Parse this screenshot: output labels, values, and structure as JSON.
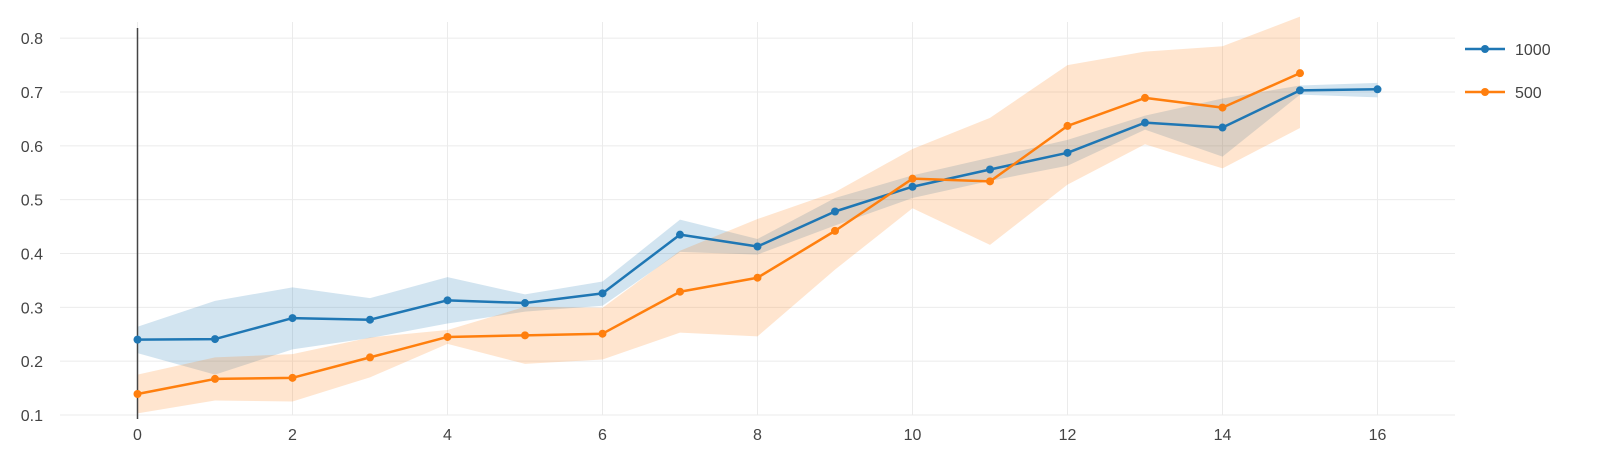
{
  "chart_data": {
    "type": "line",
    "title": "",
    "xlabel": "",
    "ylabel": "",
    "xlim": [
      -1,
      17
    ],
    "ylim": [
      0.1,
      0.83
    ],
    "xticks": [
      0,
      2,
      4,
      6,
      8,
      10,
      12,
      14,
      16
    ],
    "yticks": [
      0.1,
      0.2,
      0.3,
      0.4,
      0.5,
      0.6,
      0.7,
      0.8
    ],
    "ytick_labels": [
      "0.1",
      "0.2",
      "0.3",
      "0.4",
      "0.5",
      "0.6",
      "0.7",
      "0.8"
    ],
    "grid": true,
    "legend_position": "top-right",
    "series": [
      {
        "name": "1000",
        "color": "#1f77b4",
        "band_color": "#1f77b4",
        "x": [
          0,
          1,
          2,
          3,
          4,
          5,
          6,
          7,
          8,
          9,
          10,
          11,
          12,
          13,
          14,
          15,
          16
        ],
        "values": [
          0.24,
          0.241,
          0.28,
          0.277,
          0.313,
          0.308,
          0.326,
          0.435,
          0.413,
          0.478,
          0.524,
          0.556,
          0.587,
          0.643,
          0.634,
          0.703,
          0.705
        ],
        "lower": [
          0.215,
          0.175,
          0.222,
          0.243,
          0.27,
          0.292,
          0.303,
          0.403,
          0.398,
          0.452,
          0.503,
          0.535,
          0.563,
          0.63,
          0.58,
          0.695,
          0.69
        ],
        "upper": [
          0.264,
          0.312,
          0.337,
          0.317,
          0.356,
          0.324,
          0.348,
          0.463,
          0.427,
          0.503,
          0.545,
          0.578,
          0.611,
          0.656,
          0.688,
          0.712,
          0.717
        ]
      },
      {
        "name": "500",
        "color": "#ff7f0e",
        "band_color": "#ff7f0e",
        "x": [
          0,
          1,
          2,
          3,
          4,
          5,
          6,
          7,
          8,
          9,
          10,
          11,
          12,
          13,
          14,
          15
        ],
        "values": [
          0.139,
          0.167,
          0.169,
          0.207,
          0.245,
          0.248,
          0.251,
          0.329,
          0.355,
          0.442,
          0.539,
          0.534,
          0.637,
          0.689,
          0.671,
          0.735
        ],
        "lower": [
          0.103,
          0.127,
          0.125,
          0.17,
          0.232,
          0.195,
          0.203,
          0.253,
          0.246,
          0.37,
          0.484,
          0.416,
          0.528,
          0.603,
          0.558,
          0.633
        ],
        "upper": [
          0.175,
          0.207,
          0.213,
          0.244,
          0.258,
          0.301,
          0.299,
          0.405,
          0.464,
          0.514,
          0.594,
          0.652,
          0.75,
          0.775,
          0.785,
          0.84
        ]
      }
    ]
  }
}
